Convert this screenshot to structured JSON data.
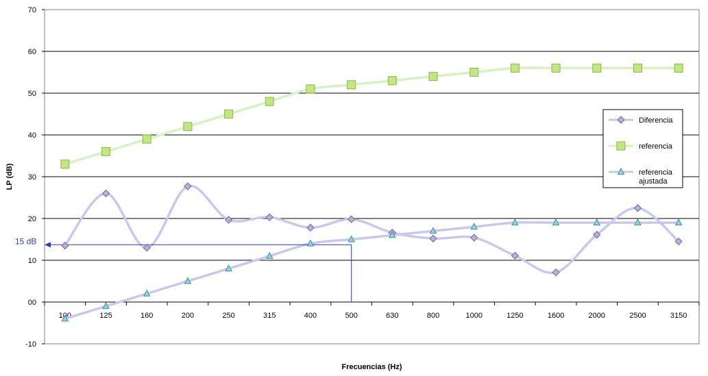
{
  "chart_data": {
    "type": "line",
    "title": "",
    "xlabel": "Frecuencias (Hz)",
    "ylabel": "LP (dB)",
    "categories": [
      "100",
      "125",
      "160",
      "200",
      "250",
      "315",
      "400",
      "500",
      "630",
      "800",
      "1000",
      "1250",
      "1600",
      "2000",
      "2500",
      "3150"
    ],
    "ylim": [
      -10,
      70
    ],
    "yticks": [
      70,
      60,
      50,
      40,
      30,
      20,
      10,
      0,
      -10
    ],
    "ytick_labels": [
      "70",
      "60",
      "50",
      "40",
      "30",
      "20",
      "10",
      "00",
      "-10"
    ],
    "grid": "horizontal",
    "legend_position": "right",
    "series": [
      {
        "name": "Diferencia",
        "marker": "diamond",
        "color": "#c8c8ee",
        "marker_fill": "#b8b0d8",
        "marker_stroke": "#6e6890",
        "values": [
          13.5,
          26,
          13,
          27.7,
          19.7,
          20.3,
          17.8,
          19.8,
          16.6,
          15.2,
          15.4,
          11.1,
          7.1,
          16.1,
          22.5,
          14.5
        ]
      },
      {
        "name": "referencia",
        "marker": "square",
        "color": "#d6f2c2",
        "marker_fill": "#c2e682",
        "marker_stroke": "#8fb24a",
        "values": [
          33,
          36,
          39,
          42,
          45,
          48,
          51,
          52,
          53,
          54,
          55,
          56,
          56,
          56,
          56,
          56
        ]
      },
      {
        "name": "referencia ajustada",
        "marker": "triangle",
        "color": "#c8c8ee",
        "marker_fill": "#8ed6de",
        "marker_stroke": "#4a8a96",
        "values": [
          -4,
          -1,
          2,
          5,
          8,
          11,
          14,
          15,
          16,
          17,
          18,
          19,
          19,
          19,
          19,
          19
        ]
      }
    ],
    "annotation": {
      "label": "15 dB",
      "category": "500",
      "y": 13.7,
      "color": "#2b3bd6"
    }
  }
}
